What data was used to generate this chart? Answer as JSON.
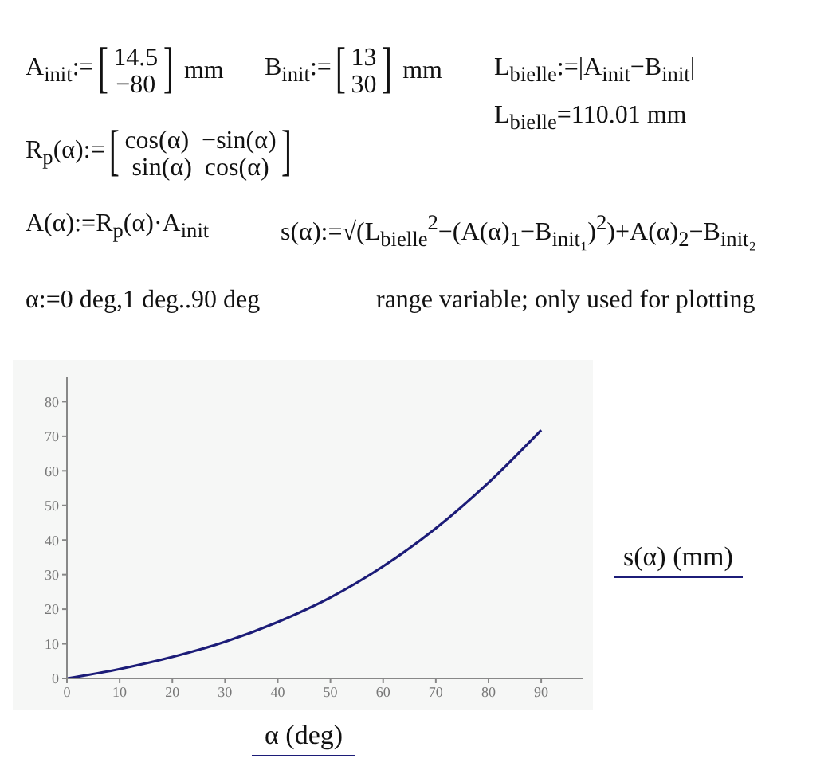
{
  "chart_data": {
    "type": "line",
    "x": [
      0,
      10,
      20,
      30,
      40,
      50,
      60,
      70,
      80,
      90
    ],
    "values": [
      0,
      2.7,
      6.2,
      10.6,
      16.3,
      23.4,
      32.4,
      43.4,
      56.6,
      71.8
    ],
    "color": "#1c1c78",
    "marker": "none",
    "grid": false,
    "xlabel": "α (deg)",
    "ylabel": "s(α) (mm)",
    "xlim": [
      0,
      98
    ],
    "ylim": [
      0,
      87
    ],
    "xticks": [
      0,
      10,
      20,
      30,
      40,
      50,
      60,
      70,
      80,
      90
    ],
    "yticks": [
      0,
      10,
      20,
      30,
      40,
      50,
      60,
      70,
      80
    ],
    "annotations": [
      "A$_{init}$:=[14.5\n−80] mm",
      "B$_{init}$:=[13\n30] mm",
      "L$_{bielle}$:=|A$_{init}$−B$_{init}$|",
      "L$_{bielle}$=110.01 mm",
      "R$_{p}$(α):=[cos(α)  −sin(α)\nsin(α)  cos(α)]",
      "A(α):=R$_{p}$(α)·A$_{init}$",
      "s(α):=√(L$_{bielle}$$^{2}$−(A(α)$_{1}$−B$_{init₁}$)$^{2}$)+A(α)$_{2}$−B$_{init₂}$",
      "α:=0 deg,1 deg..90 deg",
      "range variable; only used for plotting"
    ]
  }
}
